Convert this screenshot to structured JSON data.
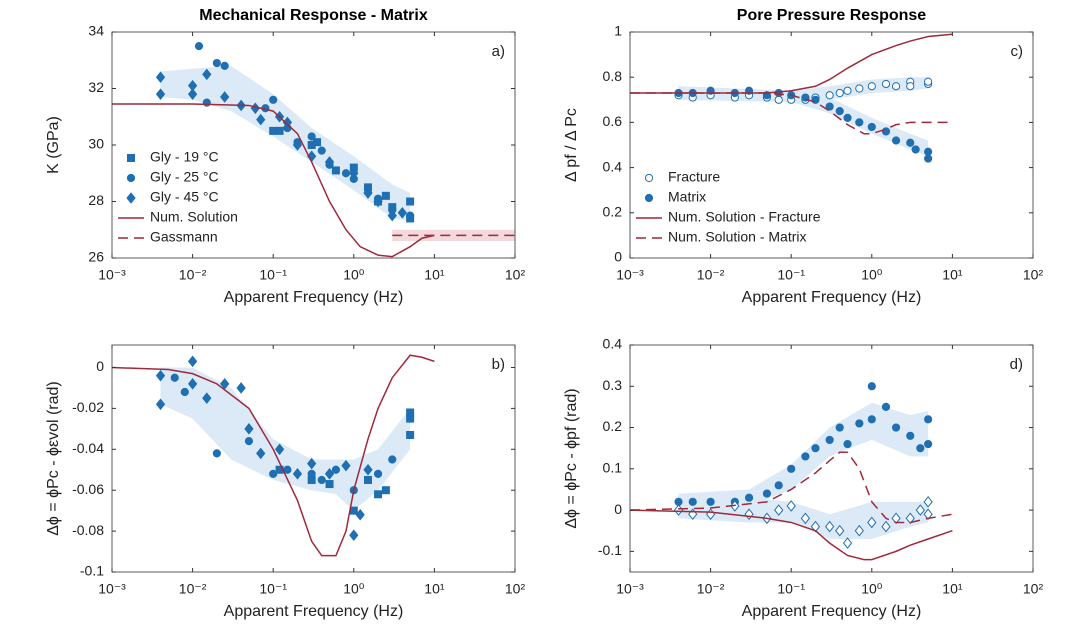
{
  "chart_data": [
    {
      "type": "scatter",
      "title": "Mechanical Response - Matrix",
      "panel_label": "a)",
      "xlabel": "Apparent Frequency (Hz)",
      "ylabel": "K (GPa)",
      "xscale": "log",
      "xlim": [
        0.001,
        100
      ],
      "ylim": [
        26,
        34
      ],
      "xticks": [
        {
          "value": 0.001,
          "label": "10⁻³"
        },
        {
          "value": 0.01,
          "label": "10⁻²"
        },
        {
          "value": 0.1,
          "label": "10⁻¹"
        },
        {
          "value": 1,
          "label": "10⁰"
        },
        {
          "value": 10,
          "label": "10¹"
        },
        {
          "value": 100,
          "label": "10²"
        }
      ],
      "yticks": [
        26,
        28,
        30,
        32,
        34
      ],
      "legend": "lower left",
      "bands": [
        {
          "color": "#dbeaf6",
          "x": [
            0.004,
            0.01,
            0.03,
            0.1,
            0.3,
            1,
            3,
            5
          ],
          "lower": [
            31.7,
            31.6,
            31.2,
            30.3,
            29.4,
            28.4,
            27.4,
            27.3
          ],
          "upper": [
            32.6,
            32.7,
            32.8,
            31.8,
            30.6,
            29.6,
            28.6,
            28.3
          ]
        },
        {
          "color": "#f3d9dc",
          "x": [
            3,
            100
          ],
          "lower": [
            26.6,
            26.6
          ],
          "upper": [
            27.0,
            27.0
          ]
        }
      ],
      "series": [
        {
          "name": "Gly - 19 °C",
          "color": "#1f6fb2",
          "marker": "square",
          "filled": true,
          "x": [
            0.1,
            0.12,
            0.3,
            0.35,
            0.6,
            1,
            1.5,
            2,
            2.5,
            3,
            5,
            5
          ],
          "values": [
            30.5,
            30.5,
            30.0,
            30.1,
            29.1,
            29.2,
            28.5,
            28.0,
            28.2,
            27.8,
            28.0,
            27.4
          ]
        },
        {
          "name": "Gly - 25 °C",
          "color": "#1f6fb2",
          "marker": "circle",
          "filled": true,
          "x": [
            0.012,
            0.02,
            0.025,
            0.015,
            0.08,
            0.1,
            0.15,
            0.2,
            0.3,
            0.4,
            0.5,
            0.8,
            1,
            2,
            3,
            5
          ],
          "values": [
            33.5,
            32.9,
            32.8,
            31.5,
            31.3,
            31.6,
            30.6,
            30.1,
            30.3,
            29.8,
            29.3,
            29.0,
            28.8,
            28.1,
            27.7,
            27.5
          ]
        },
        {
          "name": "Gly - 45 °C",
          "color": "#1f6fb2",
          "marker": "diamond",
          "filled": true,
          "x": [
            0.004,
            0.004,
            0.01,
            0.01,
            0.015,
            0.025,
            0.04,
            0.06,
            0.07,
            0.12,
            0.15,
            0.2,
            0.3,
            0.5,
            1,
            1.5,
            2,
            3,
            4
          ],
          "values": [
            32.4,
            31.8,
            31.8,
            32.1,
            32.5,
            31.7,
            31.4,
            31.3,
            30.9,
            31.0,
            30.8,
            30.0,
            29.6,
            29.4,
            29.0,
            28.3,
            28.0,
            27.5,
            27.6
          ]
        },
        {
          "name": "Num. Solution",
          "color": "#9e2a3a",
          "style": "solid",
          "x": [
            0.001,
            0.01,
            0.05,
            0.1,
            0.2,
            0.3,
            0.5,
            0.8,
            1.2,
            2,
            3,
            5,
            7,
            10
          ],
          "values": [
            31.45,
            31.45,
            31.4,
            31.2,
            30.4,
            29.4,
            28.0,
            27.0,
            26.4,
            26.1,
            26.05,
            26.4,
            26.7,
            26.8
          ]
        },
        {
          "name": "Gassmann",
          "color": "#9e2a3a",
          "style": "dashed",
          "x": [
            3,
            100
          ],
          "values": [
            26.8,
            26.8
          ]
        }
      ]
    },
    {
      "type": "scatter",
      "panel_label": "b)",
      "xlabel": "Apparent Frequency (Hz)",
      "ylabel": "Δϕ = ϕPc - ϕεvol (rad)",
      "xscale": "log",
      "xlim": [
        0.001,
        100
      ],
      "ylim": [
        -0.1,
        0.011
      ],
      "xticks": [
        {
          "value": 0.001,
          "label": "10⁻³"
        },
        {
          "value": 0.01,
          "label": "10⁻²"
        },
        {
          "value": 0.1,
          "label": "10⁻¹"
        },
        {
          "value": 1,
          "label": "10⁰"
        },
        {
          "value": 10,
          "label": "10¹"
        },
        {
          "value": 100,
          "label": "10²"
        }
      ],
      "yticks": [
        -0.1,
        -0.08,
        -0.06,
        -0.04,
        -0.02,
        0
      ],
      "bands": [
        {
          "color": "#dbeaf6",
          "x": [
            0.004,
            0.01,
            0.03,
            0.1,
            0.3,
            0.6,
            1,
            2,
            5
          ],
          "lower": [
            -0.018,
            -0.025,
            -0.045,
            -0.055,
            -0.06,
            -0.062,
            -0.07,
            -0.06,
            -0.04
          ],
          "upper": [
            0,
            0,
            -0.01,
            -0.035,
            -0.045,
            -0.045,
            -0.045,
            -0.04,
            -0.02
          ]
        }
      ],
      "series": [
        {
          "color": "#1f6fb2",
          "marker": "square",
          "filled": true,
          "x": [
            0.12,
            0.3,
            0.5,
            1,
            1.5,
            2,
            2.5,
            5,
            5,
            5
          ],
          "values": [
            -0.05,
            -0.055,
            -0.057,
            -0.07,
            -0.055,
            -0.062,
            -0.06,
            -0.033,
            -0.022,
            -0.025
          ]
        },
        {
          "color": "#1f6fb2",
          "marker": "circle",
          "filled": true,
          "x": [
            0.006,
            0.008,
            0.02,
            0.05,
            0.1,
            0.15,
            0.3,
            0.4,
            0.6,
            1,
            2,
            3
          ],
          "values": [
            -0.005,
            -0.012,
            -0.042,
            -0.036,
            -0.052,
            -0.05,
            -0.052,
            -0.055,
            -0.05,
            -0.06,
            -0.052,
            -0.045
          ]
        },
        {
          "color": "#1f6fb2",
          "marker": "diamond",
          "filled": true,
          "x": [
            0.004,
            0.004,
            0.01,
            0.01,
            0.015,
            0.025,
            0.04,
            0.05,
            0.07,
            0.12,
            0.2,
            0.3,
            0.5,
            0.8,
            1,
            1.2,
            1.5
          ],
          "values": [
            -0.004,
            -0.018,
            0.003,
            -0.008,
            -0.015,
            -0.008,
            -0.01,
            -0.03,
            -0.042,
            -0.04,
            -0.052,
            -0.047,
            -0.052,
            -0.048,
            -0.082,
            -0.072,
            -0.05
          ]
        },
        {
          "color": "#9e2a3a",
          "style": "solid",
          "x": [
            0.001,
            0.005,
            0.01,
            0.02,
            0.05,
            0.1,
            0.2,
            0.3,
            0.4,
            0.6,
            0.8,
            1,
            1.5,
            2,
            3,
            5,
            7,
            10
          ],
          "values": [
            0,
            -0.001,
            -0.003,
            -0.008,
            -0.02,
            -0.04,
            -0.065,
            -0.085,
            -0.092,
            -0.092,
            -0.08,
            -0.06,
            -0.035,
            -0.02,
            -0.005,
            0.006,
            0.005,
            0.003
          ]
        }
      ]
    },
    {
      "type": "scatter",
      "title": "Pore Pressure Response",
      "panel_label": "c)",
      "xlabel": "Apparent Frequency (Hz)",
      "ylabel": "Δ pf / Δ Pc",
      "xscale": "log",
      "xlim": [
        0.001,
        100
      ],
      "ylim": [
        0,
        1
      ],
      "xticks": [
        {
          "value": 0.001,
          "label": "10⁻³"
        },
        {
          "value": 0.01,
          "label": "10⁻²"
        },
        {
          "value": 0.1,
          "label": "10⁻¹"
        },
        {
          "value": 1,
          "label": "10⁰"
        },
        {
          "value": 10,
          "label": "10¹"
        },
        {
          "value": 100,
          "label": "10²"
        }
      ],
      "yticks": [
        0,
        0.2,
        0.4,
        0.6,
        0.8,
        1
      ],
      "legend": "lower left",
      "bands": [
        {
          "color": "#dbeaf6",
          "x": [
            0.004,
            0.1,
            0.3,
            1,
            3,
            5
          ],
          "lower": [
            0.7,
            0.69,
            0.7,
            0.73,
            0.74,
            0.75
          ],
          "upper": [
            0.76,
            0.74,
            0.76,
            0.79,
            0.8,
            0.8
          ]
        },
        {
          "color": "#dbeaf6",
          "x": [
            0.004,
            0.1,
            0.3,
            1,
            3,
            5
          ],
          "lower": [
            0.7,
            0.69,
            0.64,
            0.55,
            0.48,
            0.45
          ],
          "upper": [
            0.76,
            0.74,
            0.71,
            0.62,
            0.55,
            0.52
          ]
        }
      ],
      "series": [
        {
          "name": "Fracture",
          "color": "#1f6fb2",
          "marker": "circle",
          "filled": false,
          "x": [
            0.004,
            0.006,
            0.01,
            0.02,
            0.03,
            0.05,
            0.07,
            0.1,
            0.15,
            0.2,
            0.3,
            0.4,
            0.5,
            0.7,
            1,
            1.5,
            2,
            3,
            3,
            5,
            5
          ],
          "values": [
            0.72,
            0.71,
            0.72,
            0.71,
            0.72,
            0.71,
            0.7,
            0.7,
            0.7,
            0.71,
            0.72,
            0.73,
            0.74,
            0.75,
            0.76,
            0.77,
            0.76,
            0.78,
            0.76,
            0.77,
            0.78
          ]
        },
        {
          "name": "Matrix",
          "color": "#1f6fb2",
          "marker": "circle",
          "filled": true,
          "x": [
            0.004,
            0.006,
            0.01,
            0.02,
            0.03,
            0.05,
            0.07,
            0.1,
            0.15,
            0.2,
            0.3,
            0.4,
            0.5,
            0.7,
            1,
            1.5,
            2,
            3,
            3.5,
            5,
            5
          ],
          "values": [
            0.73,
            0.73,
            0.74,
            0.73,
            0.74,
            0.72,
            0.73,
            0.72,
            0.71,
            0.7,
            0.67,
            0.65,
            0.62,
            0.6,
            0.58,
            0.56,
            0.52,
            0.51,
            0.48,
            0.47,
            0.44
          ]
        },
        {
          "name": "Num. Solution - Fracture",
          "color": "#9e2a3a",
          "style": "solid",
          "x": [
            0.001,
            0.01,
            0.05,
            0.1,
            0.2,
            0.3,
            0.5,
            1,
            2,
            3,
            5,
            10
          ],
          "values": [
            0.73,
            0.73,
            0.73,
            0.74,
            0.76,
            0.79,
            0.84,
            0.9,
            0.94,
            0.96,
            0.98,
            0.99
          ]
        },
        {
          "name": "Num. Solution - Matrix",
          "color": "#9e2a3a",
          "style": "dashed",
          "x": [
            0.001,
            0.01,
            0.05,
            0.1,
            0.2,
            0.3,
            0.5,
            0.8,
            1,
            1.5,
            2,
            3,
            10
          ],
          "values": [
            0.73,
            0.73,
            0.73,
            0.72,
            0.69,
            0.65,
            0.59,
            0.55,
            0.55,
            0.57,
            0.59,
            0.6,
            0.6
          ]
        }
      ]
    },
    {
      "type": "scatter",
      "panel_label": "d)",
      "xlabel": "Apparent Frequency (Hz)",
      "ylabel": "Δϕ = ϕPc - ϕpf (rad)",
      "xscale": "log",
      "xlim": [
        0.001,
        100
      ],
      "ylim": [
        -0.15,
        0.4
      ],
      "xticks": [
        {
          "value": 0.001,
          "label": "10⁻³"
        },
        {
          "value": 0.01,
          "label": "10⁻²"
        },
        {
          "value": 0.1,
          "label": "10⁻¹"
        },
        {
          "value": 1,
          "label": "10⁰"
        },
        {
          "value": 10,
          "label": "10¹"
        },
        {
          "value": 100,
          "label": "10²"
        }
      ],
      "yticks": [
        -0.1,
        0,
        0.1,
        0.2,
        0.3,
        0.4
      ],
      "bands": [
        {
          "color": "#dbeaf6",
          "x": [
            0.004,
            0.03,
            0.1,
            0.3,
            1,
            3,
            5
          ],
          "lower": [
            0,
            0.01,
            0.05,
            0.13,
            0.17,
            0.13,
            0.13
          ],
          "upper": [
            0.04,
            0.05,
            0.11,
            0.2,
            0.26,
            0.23,
            0.24
          ]
        },
        {
          "color": "#dbeaf6",
          "x": [
            0.004,
            0.03,
            0.1,
            0.3,
            1,
            3,
            5
          ],
          "lower": [
            -0.02,
            -0.03,
            -0.03,
            -0.07,
            -0.07,
            -0.04,
            -0.03
          ],
          "upper": [
            0.02,
            0.03,
            0.02,
            -0.01,
            0.02,
            0.02,
            0.02
          ]
        }
      ],
      "series": [
        {
          "color": "#1f6fb2",
          "marker": "circle",
          "filled": true,
          "x": [
            0.004,
            0.006,
            0.01,
            0.02,
            0.03,
            0.05,
            0.07,
            0.1,
            0.15,
            0.2,
            0.3,
            0.4,
            0.5,
            0.7,
            1,
            1,
            1.5,
            2,
            3,
            4,
            5,
            5
          ],
          "values": [
            0.02,
            0.02,
            0.02,
            0.02,
            0.03,
            0.04,
            0.06,
            0.1,
            0.13,
            0.15,
            0.17,
            0.2,
            0.16,
            0.21,
            0.3,
            0.22,
            0.25,
            0.2,
            0.18,
            0.15,
            0.22,
            0.16
          ]
        },
        {
          "color": "#1f6fb2",
          "marker": "diamond",
          "filled": false,
          "x": [
            0.004,
            0.006,
            0.01,
            0.02,
            0.03,
            0.05,
            0.07,
            0.1,
            0.15,
            0.2,
            0.3,
            0.4,
            0.5,
            0.7,
            1,
            1.5,
            2,
            3,
            4,
            5,
            5
          ],
          "values": [
            0.0,
            -0.01,
            -0.01,
            0.01,
            -0.01,
            -0.02,
            0.0,
            0.01,
            -0.02,
            -0.04,
            -0.04,
            -0.05,
            -0.08,
            -0.05,
            -0.03,
            -0.04,
            -0.02,
            -0.02,
            0.0,
            0.02,
            -0.01
          ]
        },
        {
          "color": "#9e2a3a",
          "style": "dashed",
          "x": [
            0.001,
            0.01,
            0.05,
            0.1,
            0.2,
            0.3,
            0.4,
            0.5,
            0.7,
            1,
            1.5,
            2,
            3,
            5,
            10
          ],
          "values": [
            0,
            0.005,
            0.02,
            0.05,
            0.09,
            0.12,
            0.14,
            0.14,
            0.1,
            0.02,
            -0.02,
            -0.03,
            -0.03,
            -0.02,
            -0.01
          ]
        },
        {
          "color": "#9e2a3a",
          "style": "solid",
          "x": [
            0.001,
            0.01,
            0.05,
            0.1,
            0.2,
            0.3,
            0.5,
            0.8,
            1,
            2,
            3,
            5,
            10
          ],
          "values": [
            0,
            -0.005,
            -0.02,
            -0.03,
            -0.05,
            -0.08,
            -0.11,
            -0.12,
            -0.12,
            -0.1,
            -0.085,
            -0.07,
            -0.05
          ]
        }
      ]
    }
  ]
}
